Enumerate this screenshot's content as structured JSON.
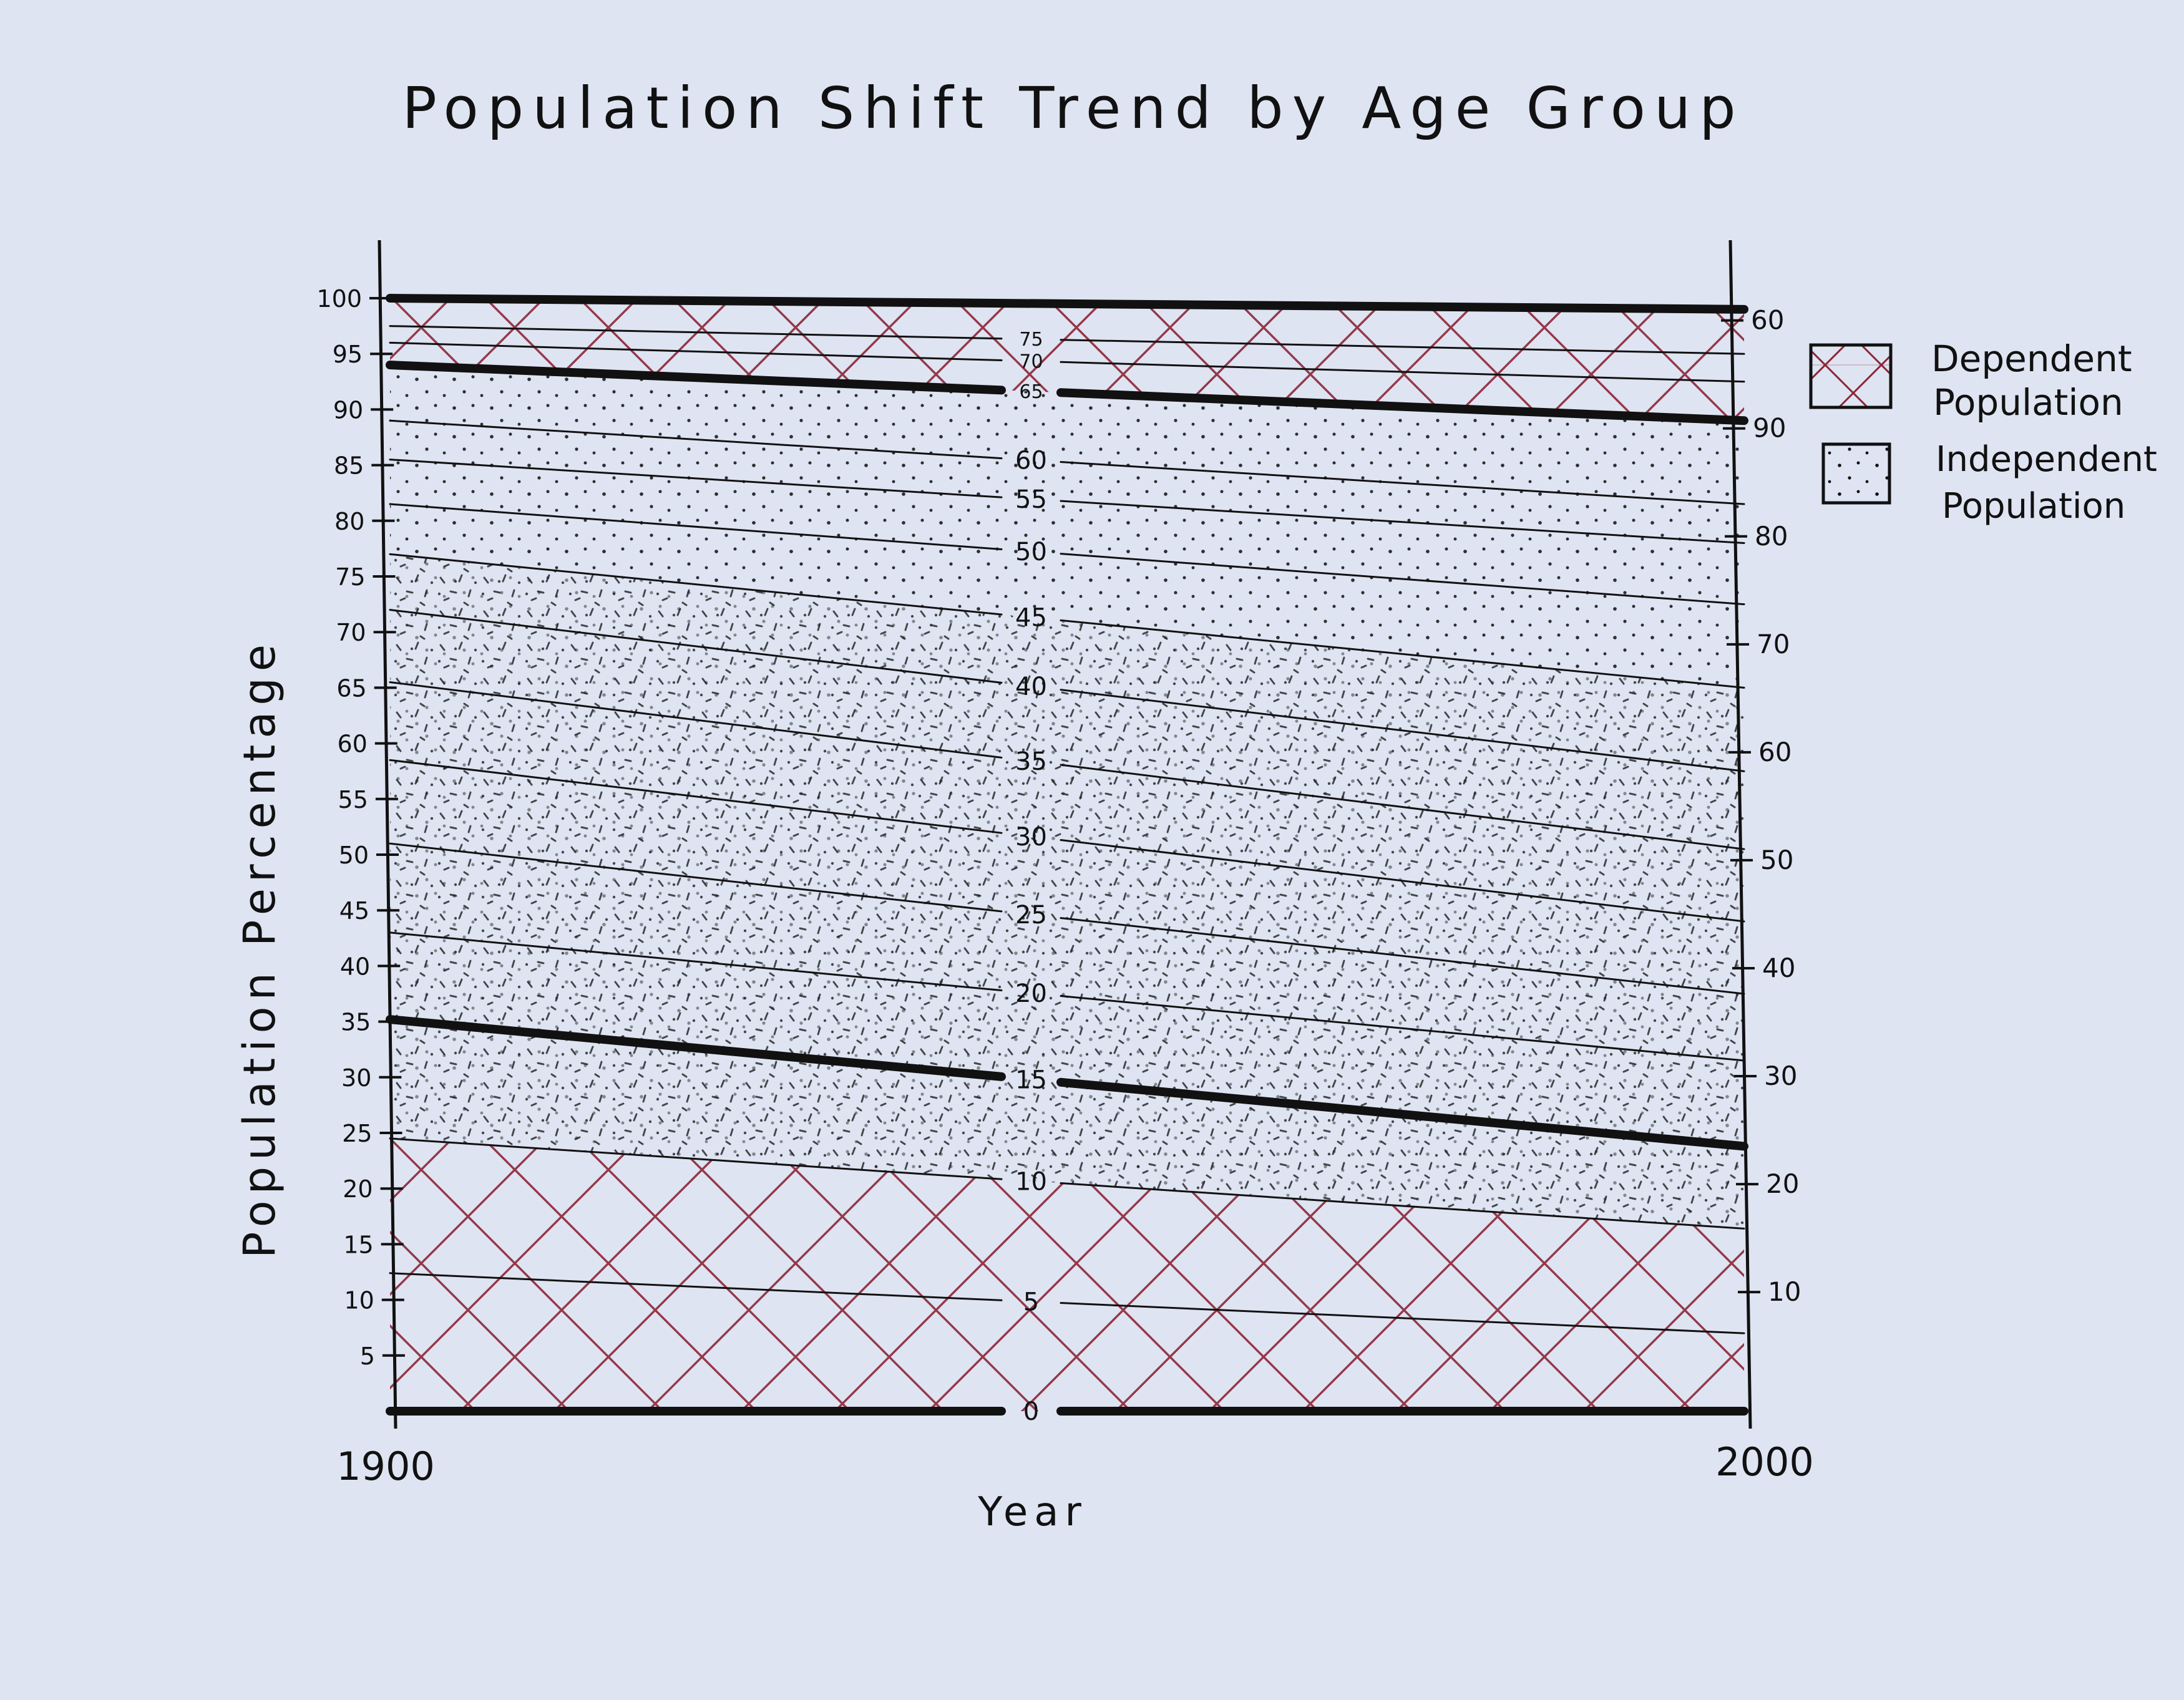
{
  "colors": {
    "background": "#dfe4f2",
    "ink": "#111111",
    "hatch": "#8c2638"
  },
  "chart_data": {
    "type": "area",
    "title": "Population Shift Trend by Age Group",
    "xlabel": "Year",
    "ylabel": "Population Percentage",
    "x_ticks": [
      1900,
      2000
    ],
    "xlim": [
      1900,
      2000
    ],
    "ylim_left": [
      0,
      100
    ],
    "ylim_right": [
      0,
      100
    ],
    "left_y_ticks": [
      100,
      95,
      90,
      85,
      80,
      75,
      70,
      65,
      60,
      55,
      50,
      45,
      40,
      35,
      30,
      25,
      20,
      15,
      10,
      5
    ],
    "right_y_ticks": [
      60,
      90,
      80,
      70,
      60,
      50,
      40,
      30,
      20,
      10
    ],
    "age_boundaries": [
      {
        "label": "0",
        "y_1900": 0,
        "y_2000": 0,
        "bold": true
      },
      {
        "label": "5",
        "y_1900": 12.4,
        "y_2000": 7.0,
        "bold": false
      },
      {
        "label": "10",
        "y_1900": 24.5,
        "y_2000": 16.4,
        "bold": false
      },
      {
        "label": "15",
        "y_1900": 35.2,
        "y_2000": 23.8,
        "bold": true
      },
      {
        "label": "20",
        "y_1900": 43.0,
        "y_2000": 31.5,
        "bold": false
      },
      {
        "label": "25",
        "y_1900": 51.0,
        "y_2000": 37.5,
        "bold": false
      },
      {
        "label": "30",
        "y_1900": 58.5,
        "y_2000": 44.0,
        "bold": false
      },
      {
        "label": "35",
        "y_1900": 65.5,
        "y_2000": 50.5,
        "bold": false
      },
      {
        "label": "40",
        "y_1900": 72.0,
        "y_2000": 57.5,
        "bold": false
      },
      {
        "label": "45",
        "y_1900": 77.0,
        "y_2000": 65.0,
        "bold": false
      },
      {
        "label": "50",
        "y_1900": 81.5,
        "y_2000": 72.5,
        "bold": false
      },
      {
        "label": "55",
        "y_1900": 85.5,
        "y_2000": 78.0,
        "bold": false
      },
      {
        "label": "60",
        "y_1900": 89.0,
        "y_2000": 81.5,
        "bold": false
      },
      {
        "label": "65",
        "y_1900": 94.0,
        "y_2000": 89.0,
        "bold": true
      },
      {
        "label": "70",
        "y_1900": 96.0,
        "y_2000": 92.5,
        "bold": false
      },
      {
        "label": "75",
        "y_1900": 97.5,
        "y_2000": 95.0,
        "bold": false
      },
      {
        "label": "",
        "y_1900": 100,
        "y_2000": 99.0,
        "bold": true
      }
    ],
    "series": [
      {
        "name": "Dependent Population",
        "pattern": "crosshatch"
      },
      {
        "name": "Independent Population",
        "pattern": "dots"
      }
    ],
    "legend": [
      {
        "label_line1": "Dependent",
        "label_line2": "Population",
        "pattern": "crosshatch"
      },
      {
        "label_line1": "Independent",
        "label_line2": "Population",
        "pattern": "dots"
      }
    ],
    "legend_position": "right",
    "grid": false
  }
}
